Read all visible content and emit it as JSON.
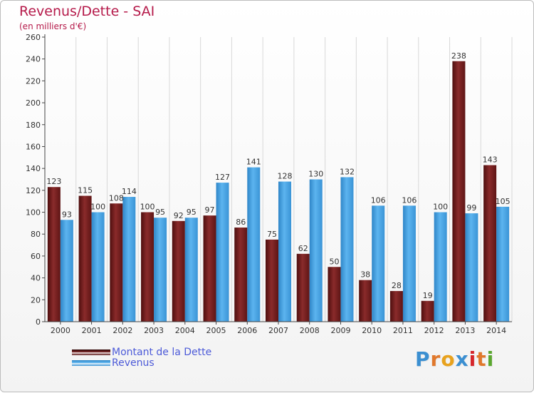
{
  "header": {
    "title": "Revenus/Dette - SAI",
    "subtitle": "(en milliers d'€)"
  },
  "colors": {
    "title": "#b51a4a",
    "dette": "#6b1d1d",
    "revenus": "#3f9fe0",
    "legend_text": "#4c5ad8"
  },
  "chart_data": {
    "type": "bar",
    "title": "Revenus/Dette - SAI",
    "subtitle": "(en milliers d'€)",
    "categories": [
      "2000",
      "2001",
      "2002",
      "2003",
      "2004",
      "2005",
      "2006",
      "2007",
      "2008",
      "2009",
      "2010",
      "2011",
      "2012",
      "2013",
      "2014"
    ],
    "series": [
      {
        "name": "Montant de la Dette",
        "values": [
          123,
          115,
          108,
          100,
          92,
          97,
          86,
          75,
          62,
          50,
          38,
          28,
          19,
          238,
          143
        ]
      },
      {
        "name": "Revenus",
        "values": [
          93,
          100,
          114,
          95,
          95,
          127,
          141,
          128,
          130,
          132,
          106,
          106,
          100,
          99,
          105
        ]
      }
    ],
    "ylim": [
      0,
      260
    ],
    "yticks": [
      0,
      20,
      40,
      60,
      80,
      100,
      120,
      140,
      160,
      180,
      200,
      220,
      240,
      260
    ],
    "grid": "vertical",
    "legend_position": "bottom-left"
  },
  "legend": {
    "items": [
      {
        "label": "Montant de la Dette",
        "color": "#6b1d1d"
      },
      {
        "label": "Revenus",
        "color": "#3f9fe0"
      }
    ]
  },
  "logo": {
    "letters": [
      "P",
      "r",
      "o",
      "x",
      "i",
      "t",
      "i"
    ]
  }
}
